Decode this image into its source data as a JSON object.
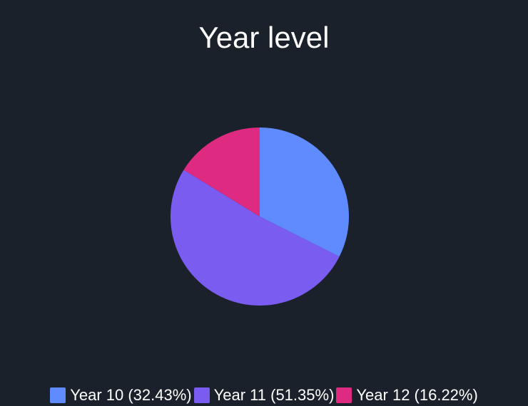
{
  "chart_data": {
    "type": "pie",
    "title": "Year level",
    "categories": [
      "Year 10",
      "Year 11",
      "Year 12"
    ],
    "values": [
      32.43,
      51.35,
      16.22
    ],
    "legend_labels": [
      "Year 10 (32.43%)",
      "Year 11 (51.35%)",
      "Year 12 (16.22%)"
    ],
    "colors": [
      "#5f8bff",
      "#7a5cf0",
      "#de2a80"
    ],
    "legend_position": "bottom",
    "background": "#1b212b"
  }
}
